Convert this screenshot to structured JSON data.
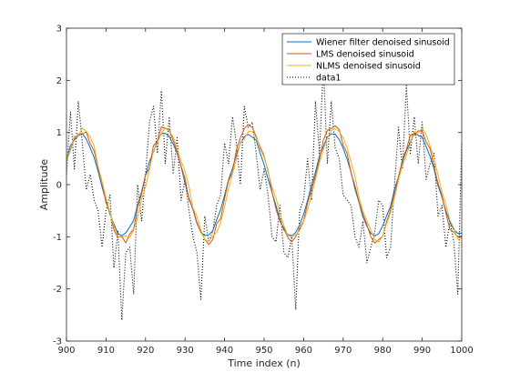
{
  "chart_data": {
    "type": "line",
    "title": "",
    "xlabel": "Time index (n)",
    "ylabel": "Amplitude",
    "xlim": [
      900,
      1000
    ],
    "ylim": [
      -3,
      3
    ],
    "xticks": [
      900,
      910,
      920,
      930,
      940,
      950,
      960,
      970,
      980,
      990,
      1000
    ],
    "yticks": [
      -3,
      -2,
      -1,
      0,
      1,
      2,
      3
    ],
    "grid": false,
    "legend_position": "top-right",
    "sinusoid": {
      "period": 21.3,
      "peak_at": 903.5,
      "amplitude": 1.0
    },
    "series": [
      {
        "name": "Wiener filter denoised sinusoid",
        "color": "#0072BD",
        "style": "solid",
        "amplitude": 0.97,
        "phase_shift": 0.0,
        "noise": 0.04
      },
      {
        "name": "LMS denoised sinusoid",
        "color": "#D95319",
        "style": "solid",
        "amplitude": 1.07,
        "phase_shift": 0.2,
        "noise": 0.09
      },
      {
        "name": "NLMS denoised sinusoid",
        "color": "#EDB120",
        "style": "solid",
        "amplitude": 1.05,
        "phase_shift": 0.55,
        "noise": 0.07
      },
      {
        "name": "data1",
        "color": "#000000",
        "style": "dotted",
        "x": [
          900,
          901,
          902,
          903,
          904,
          905,
          906,
          907,
          908,
          909,
          910,
          911,
          912,
          913,
          914,
          915,
          916,
          917,
          918,
          919,
          920,
          921,
          922,
          923,
          924,
          925,
          926,
          927,
          928,
          929,
          930,
          931,
          932,
          933,
          934,
          935,
          936,
          937,
          938,
          939,
          940,
          941,
          942,
          943,
          944,
          945,
          946,
          947,
          948,
          949,
          950,
          951,
          952,
          953,
          954,
          955,
          956,
          957,
          958,
          959,
          960,
          961,
          962,
          963,
          964,
          965,
          966,
          967,
          968,
          969,
          970,
          971,
          972,
          973,
          974,
          975,
          976,
          977,
          978,
          979,
          980,
          981,
          982,
          983,
          984,
          985,
          986,
          987,
          988,
          989,
          990,
          991,
          992,
          993,
          994,
          995,
          996,
          997,
          998,
          999,
          1000
        ],
        "y": [
          0.2,
          1.4,
          0.3,
          1.6,
          0.8,
          -0.1,
          0.2,
          -0.3,
          -0.5,
          -1.2,
          -0.5,
          -0.2,
          -1.6,
          -0.9,
          -2.6,
          -1.3,
          -1.2,
          -2.1,
          0.0,
          -0.7,
          0.2,
          1.2,
          1.5,
          0.6,
          1.8,
          0.4,
          1.3,
          0.2,
          0.9,
          -0.3,
          0.1,
          -0.5,
          -1.0,
          -1.3,
          -2.2,
          -0.6,
          -1.1,
          -0.9,
          -0.4,
          -0.2,
          0.8,
          0.4,
          1.3,
          0.8,
          0.0,
          1.5,
          1.1,
          1.2,
          0.6,
          -0.1,
          0.3,
          -0.2,
          -1.0,
          -1.1,
          -0.4,
          -1.3,
          -1.4,
          -1.0,
          -2.4,
          -0.5,
          -0.3,
          0.5,
          -0.3,
          1.6,
          0.6,
          2.3,
          0.4,
          1.6,
          0.7,
          0.5,
          -0.2,
          -0.3,
          -0.4,
          -1.0,
          -1.2,
          -0.7,
          -1.5,
          -1.2,
          -0.9,
          -0.3,
          -0.4,
          -1.4,
          -1.2,
          0.0,
          1.1,
          0.3,
          1.9,
          0.6,
          1.3,
          0.4,
          1.2,
          0.1,
          0.4,
          0.6,
          -0.6,
          -0.4,
          -1.2,
          -0.7,
          -1.1,
          -2.1,
          0.8
        ]
      }
    ]
  }
}
